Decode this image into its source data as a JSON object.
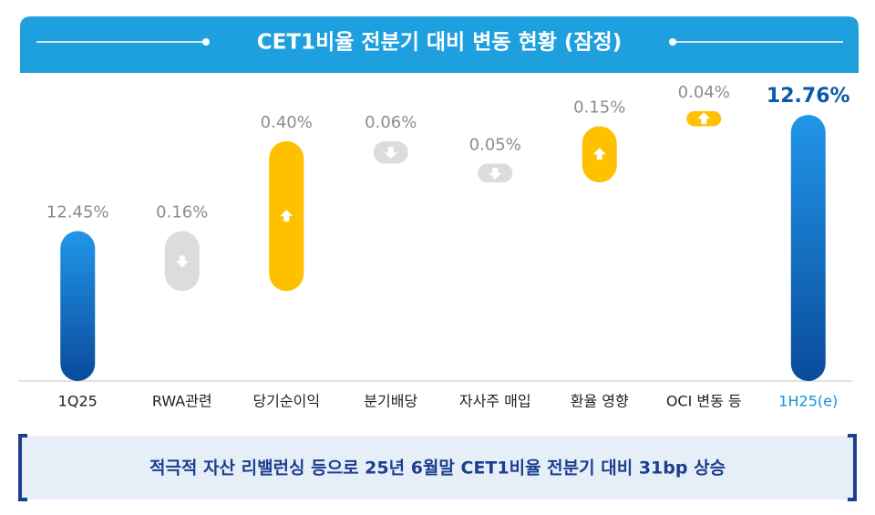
{
  "chart_data": {
    "type": "waterfall",
    "title": "CET1비율 전분기 대비 변동 현황 (잠정)",
    "categories": [
      "1Q25",
      "RWA관련",
      "당기순이익",
      "분기배당",
      "자사주 매입",
      "환율 영향",
      "OCI 변동 등",
      "1H25(e)"
    ],
    "values": [
      12.45,
      -0.16,
      0.4,
      -0.06,
      -0.05,
      0.15,
      0.04,
      12.76
    ],
    "value_labels": [
      "12.45%",
      "0.16%",
      "0.40%",
      "0.06%",
      "0.05%",
      "0.15%",
      "0.04%",
      "12.76%"
    ],
    "is_total": [
      true,
      false,
      false,
      false,
      false,
      false,
      false,
      true
    ],
    "colors": {
      "total_top": "#2196e8",
      "total_bottom": "#0a4b9b",
      "increase": "#ffc000",
      "decrease": "#dcdcdc",
      "highlight": "#0b5aa8"
    },
    "summary": "적극적 자산 리밸런싱 등으로 25년 6월말 CET1비율  전분기 대비 31bp 상승"
  }
}
